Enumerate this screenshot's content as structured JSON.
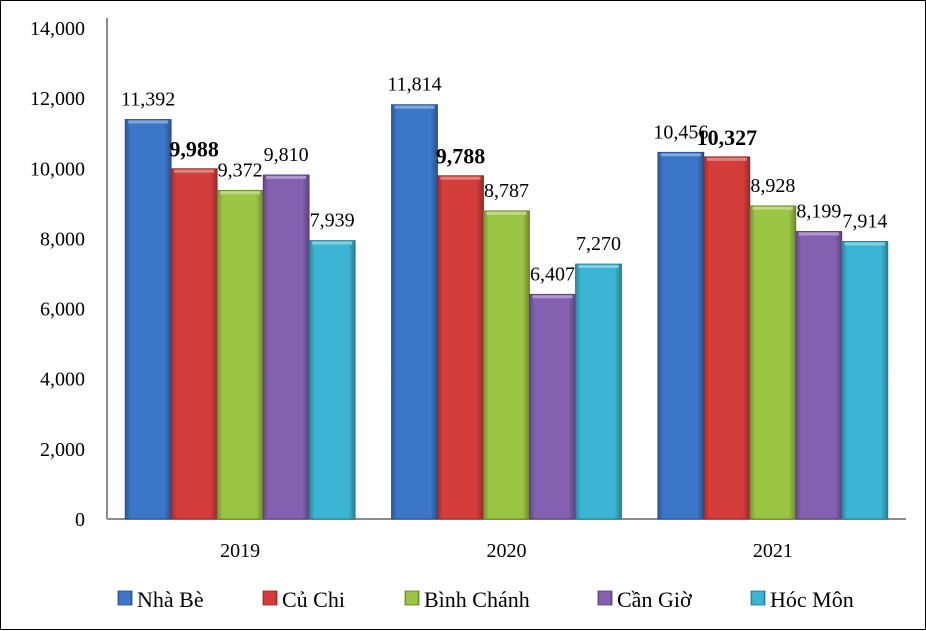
{
  "chart_data": {
    "type": "bar",
    "title": "",
    "xlabel": "",
    "ylabel": "",
    "ylim": [
      0,
      14000
    ],
    "yticks": [
      "0",
      "2,000",
      "4,000",
      "6,000",
      "8,000",
      "10,000",
      "12,000",
      "14,000"
    ],
    "ytick_values": [
      0,
      2000,
      4000,
      6000,
      8000,
      10000,
      12000,
      14000
    ],
    "categories": [
      "2019",
      "2020",
      "2021"
    ],
    "grid": false,
    "legend_position": "bottom",
    "series": [
      {
        "name": "Nhà Bè",
        "color": "#3B76C8",
        "values": [
          11392,
          11814,
          10456
        ],
        "labels": [
          "11,392",
          "11,814",
          "10,456"
        ],
        "bold": [
          false,
          false,
          false
        ]
      },
      {
        "name": "Củ Chi",
        "color": "#D43D3A",
        "values": [
          9988,
          9788,
          10327
        ],
        "labels": [
          "9,988",
          "9,788",
          "10,327"
        ],
        "bold": [
          true,
          true,
          true
        ]
      },
      {
        "name": "Bình Chánh",
        "color": "#9AC443",
        "values": [
          9372,
          8787,
          8928
        ],
        "labels": [
          "9,372",
          "8,787",
          "8,928"
        ],
        "bold": [
          false,
          false,
          false
        ]
      },
      {
        "name": "Cần Giờ",
        "color": "#8460B0",
        "values": [
          9810,
          6407,
          8199
        ],
        "labels": [
          "9,810",
          "6,407",
          "8,199"
        ],
        "bold": [
          false,
          false,
          false
        ]
      },
      {
        "name": "Hóc Môn",
        "color": "#3BB5D3",
        "values": [
          7939,
          7270,
          7914
        ],
        "labels": [
          "7,939",
          "7,270",
          "7,914"
        ],
        "bold": [
          false,
          false,
          false
        ]
      }
    ]
  }
}
